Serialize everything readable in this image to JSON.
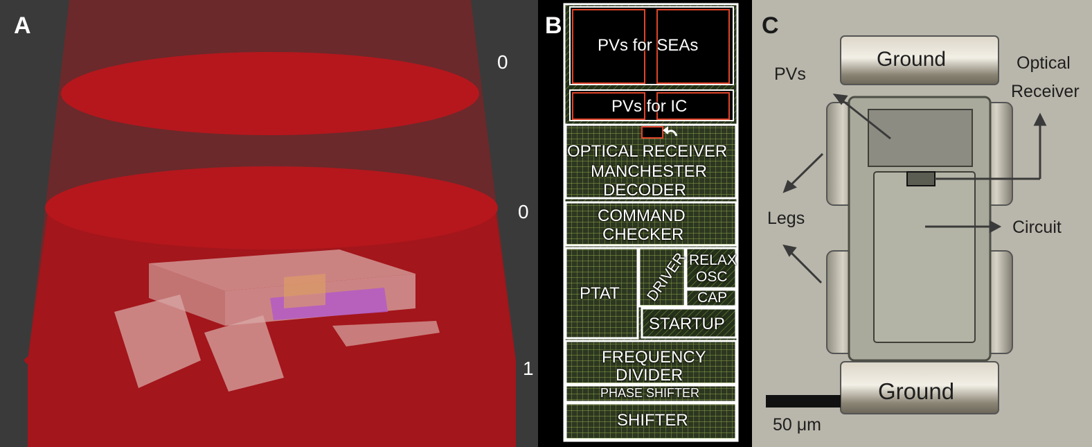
{
  "panels": {
    "a": {
      "letter": "A",
      "levels": [
        "0",
        "0",
        "1"
      ]
    },
    "b": {
      "letter": "B",
      "blocks": {
        "pv_seas": "PVs for SEAs",
        "pv_ic": "PVs for IC",
        "optical_receiver": "OPTICAL RECEIVER",
        "manchester": "MANCHESTER",
        "decoder": "DECODER",
        "command": "COMMAND",
        "checker": "CHECKER",
        "ptat": "PTAT",
        "driver": "DRIVER",
        "relax": "RELAX",
        "osc": "OSC",
        "cap": "CAP",
        "startup": "STARTUP",
        "frequency": "FREQUENCY",
        "divider": "DIVIDER",
        "phase_shifter": "PHASE SHIFTER",
        "shifter": "SHIFTER"
      }
    },
    "c": {
      "letter": "C",
      "labels": {
        "ground_top": "Ground",
        "ground_bottom": "Ground",
        "pvs": "PVs",
        "optical": "Optical",
        "receiver": "Receiver",
        "legs": "Legs",
        "circuit": "Circuit",
        "scale": "50 μm"
      }
    }
  },
  "colors": {
    "beam_red": "#a8161b",
    "die_black": "#000000",
    "pv_border": "#e0442a",
    "photo_bg": "#b9b6ab"
  }
}
